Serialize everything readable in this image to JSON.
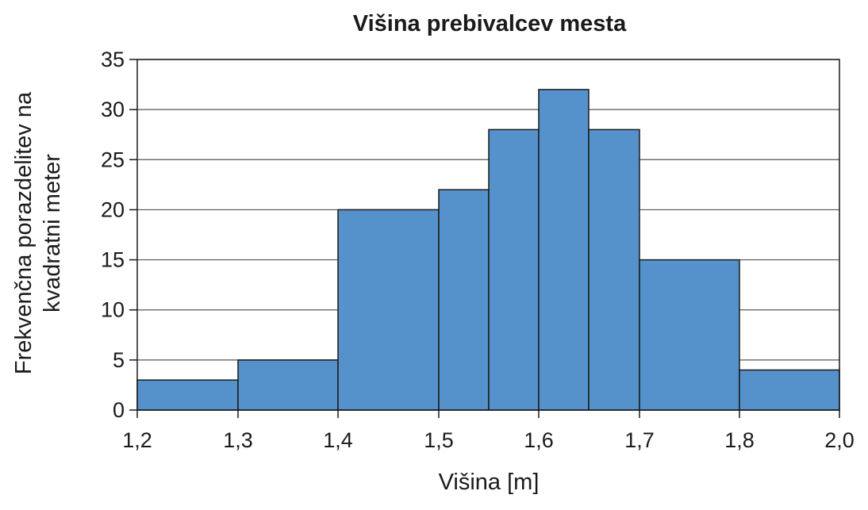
{
  "chart_data": {
    "type": "histogram",
    "title": "Višina prebivalcev mesta",
    "xlabel": "Višina [m]",
    "ylabel_lines": [
      "Frekvenčna porazdelitev na",
      "kvadratni meter"
    ],
    "bin_edges": [
      1.2,
      1.3,
      1.4,
      1.5,
      1.55,
      1.6,
      1.65,
      1.7,
      1.8,
      2.0
    ],
    "values": [
      3,
      5,
      20,
      22,
      28,
      32,
      28,
      15,
      4
    ],
    "ylim": [
      0,
      35
    ],
    "yticks": [
      0,
      5,
      10,
      15,
      20,
      25,
      30,
      35
    ],
    "xticks": [
      {
        "label": "1,2",
        "index": 0
      },
      {
        "label": "1,3",
        "index": 1
      },
      {
        "label": "1,4",
        "index": 2
      },
      {
        "label": "1,5",
        "index": 3
      },
      {
        "label": "1,6",
        "index": 5
      },
      {
        "label": "1,7",
        "index": 7
      },
      {
        "label": "1,8",
        "index": 8
      },
      {
        "label": "2,0",
        "index": 9
      }
    ],
    "grid": true,
    "bar_color": "#5592cb",
    "bar_edge_color": "#1a1a1a"
  }
}
